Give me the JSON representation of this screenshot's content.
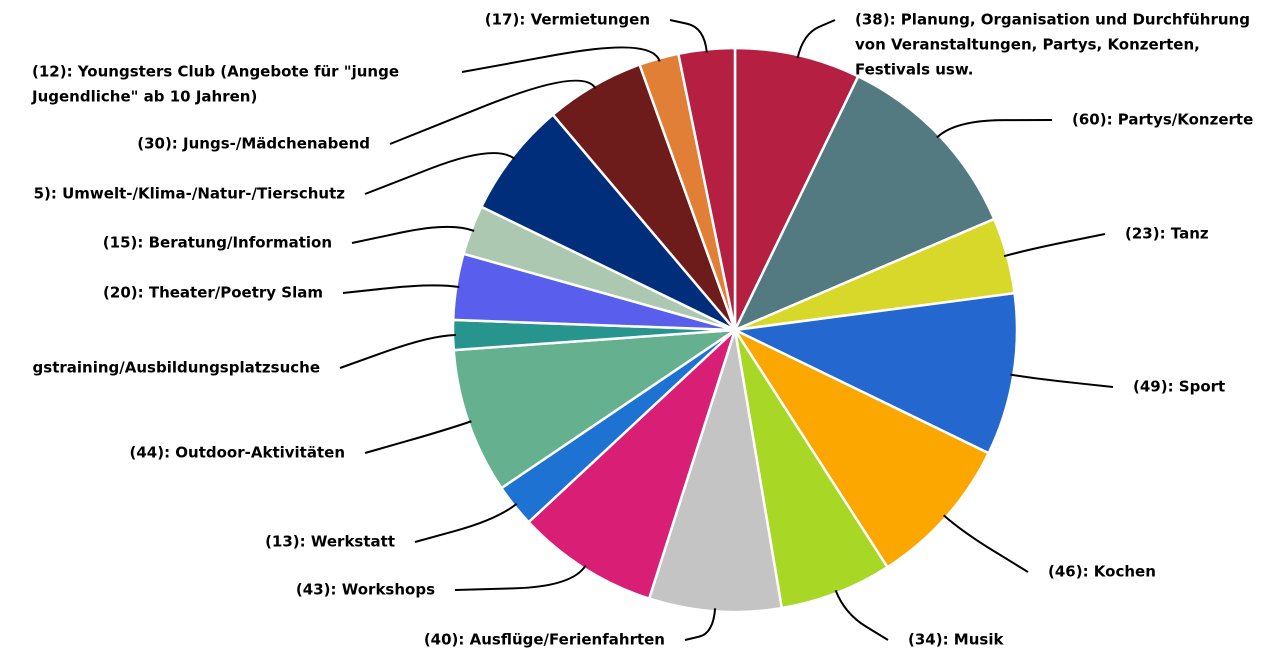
{
  "chart_data": {
    "type": "pie",
    "categories": [
      [
        "(38): Planung, Organisation und Durchführung",
        "von Veranstaltungen, Partys, Konzerten,",
        "Festivals usw."
      ],
      [
        "(60): Partys/Konzerte"
      ],
      [
        "(23): Tanz"
      ],
      [
        "(49): Sport"
      ],
      [
        "(46): Kochen"
      ],
      [
        "(34): Musik"
      ],
      [
        "(40): Ausflüge/Ferienfahrten"
      ],
      [
        "(43): Workshops"
      ],
      [
        "(13): Werkstatt"
      ],
      [
        "(44): Outdoor-Aktivitäten"
      ],
      [
        "gstraining/Ausbildungsplatzsuche"
      ],
      [
        "(20): Theater/Poetry Slam"
      ],
      [
        "(15): Beratung/Information"
      ],
      [
        "5): Umwelt-/Klima-/Natur-/Tierschutz"
      ],
      [
        "(30): Jungs-/Mädchenabend"
      ],
      [
        "(12): Youngsters Club (Angebote für \"junge",
        "Jugendliche\" ab 10 Jahren)"
      ],
      [
        "(17): Vermietungen"
      ]
    ],
    "values": [
      38,
      60,
      23,
      49,
      46,
      34,
      40,
      43,
      13,
      44,
      9,
      20,
      15,
      35,
      30,
      12,
      17
    ],
    "colors": [
      "#b51f41",
      "#527a80",
      "#d8d82a",
      "#2468cf",
      "#fca600",
      "#a8d825",
      "#c4c4c4",
      "#d81f75",
      "#1e72d2",
      "#64b08f",
      "#27958e",
      "#5a5eec",
      "#adc8b0",
      "#002e7a",
      "#6e1b1c",
      "#e17f37",
      "#b51f41"
    ]
  }
}
